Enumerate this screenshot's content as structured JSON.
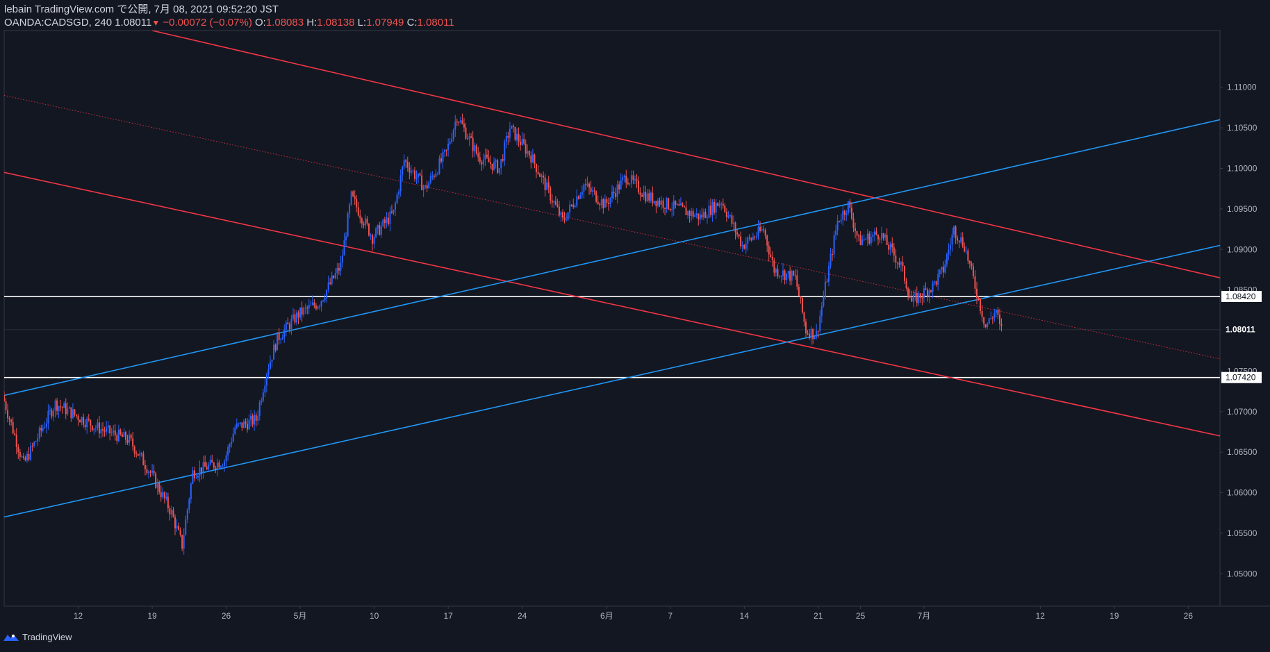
{
  "header": {
    "published": "lebain TradingView.com で公開, 7月 08, 2021 09:52:20 JST",
    "symbol": "OANDA:CADSGD, 240",
    "last": "1.08011",
    "arrow": "▼",
    "change": "−0.00072 (−0.07%)",
    "o_label": "O:",
    "o_value": "1.08083",
    "h_label": "H:",
    "h_value": "1.08138",
    "l_label": "L:",
    "l_value": "1.07949",
    "c_label": "C:",
    "c_value": "1.08011"
  },
  "footer": {
    "brand": "TradingView"
  },
  "colors": {
    "background": "#131722",
    "up": "#2962ff",
    "down": "#ef5350",
    "channel_red": "#f23645",
    "channel_blue": "#2196f3",
    "level": "#ffffff"
  },
  "chart_data": {
    "type": "candlestick",
    "symbol": "OANDA:CADSGD",
    "interval": "240",
    "y_range": [
      1.046,
      1.117
    ],
    "y_ticks": [
      "1.11000",
      "1.10500",
      "1.10000",
      "1.09500",
      "1.09000",
      "1.08500",
      "1.08000",
      "1.07500",
      "1.07000",
      "1.06500",
      "1.06000",
      "1.05500",
      "1.05000"
    ],
    "y_tick_values": [
      1.11,
      1.105,
      1.1,
      1.095,
      1.09,
      1.085,
      1.08,
      1.075,
      1.07,
      1.065,
      1.06,
      1.055,
      1.05
    ],
    "x_range": [
      "2021-04-05",
      "2021-07-29"
    ],
    "x_ticks": [
      {
        "label": "12",
        "date": "2021-04-12"
      },
      {
        "label": "19",
        "date": "2021-04-19"
      },
      {
        "label": "26",
        "date": "2021-04-26"
      },
      {
        "label": "5月",
        "date": "2021-05-03"
      },
      {
        "label": "10",
        "date": "2021-05-10"
      },
      {
        "label": "17",
        "date": "2021-05-17"
      },
      {
        "label": "24",
        "date": "2021-05-24"
      },
      {
        "label": "6月",
        "date": "2021-06-01"
      },
      {
        "label": "7",
        "date": "2021-06-07"
      },
      {
        "label": "14",
        "date": "2021-06-14"
      },
      {
        "label": "21",
        "date": "2021-06-21"
      },
      {
        "label": "25",
        "date": "2021-06-25"
      },
      {
        "label": "7月",
        "date": "2021-07-01"
      },
      {
        "label": "12",
        "date": "2021-07-12"
      },
      {
        "label": "19",
        "date": "2021-07-19"
      },
      {
        "label": "26",
        "date": "2021-07-26"
      }
    ],
    "price_path": [
      [
        "2021-04-05",
        1.072
      ],
      [
        "2021-04-07",
        1.0635
      ],
      [
        "2021-04-10",
        1.071
      ],
      [
        "2021-04-14",
        1.068
      ],
      [
        "2021-04-17",
        1.0665
      ],
      [
        "2021-04-19",
        1.0625
      ],
      [
        "2021-04-21",
        1.0575
      ],
      [
        "2021-04-22",
        1.0535
      ],
      [
        "2021-04-23",
        1.0625
      ],
      [
        "2021-04-26",
        1.064
      ],
      [
        "2021-04-27",
        1.068
      ],
      [
        "2021-04-29",
        1.069
      ],
      [
        "2021-04-30",
        1.075
      ],
      [
        "2021-05-01",
        1.079
      ],
      [
        "2021-05-03",
        1.082
      ],
      [
        "2021-05-05",
        1.0835
      ],
      [
        "2021-05-07",
        1.088
      ],
      [
        "2021-05-08",
        1.0965
      ],
      [
        "2021-05-10",
        1.0915
      ],
      [
        "2021-05-12",
        1.0945
      ],
      [
        "2021-05-13",
        1.101
      ],
      [
        "2021-05-15",
        1.0975
      ],
      [
        "2021-05-17",
        1.102
      ],
      [
        "2021-05-18",
        1.1065
      ],
      [
        "2021-05-20",
        1.1015
      ],
      [
        "2021-05-22",
        1.1
      ],
      [
        "2021-05-23",
        1.105
      ],
      [
        "2021-05-25",
        1.1015
      ],
      [
        "2021-05-28",
        1.0935
      ],
      [
        "2021-05-30",
        1.098
      ],
      [
        "2021-06-01",
        1.0955
      ],
      [
        "2021-06-03",
        1.099
      ],
      [
        "2021-06-05",
        1.0965
      ],
      [
        "2021-06-07",
        1.0955
      ],
      [
        "2021-06-10",
        1.094
      ],
      [
        "2021-06-12",
        1.096
      ],
      [
        "2021-06-14",
        1.0905
      ],
      [
        "2021-06-16",
        1.0925
      ],
      [
        "2021-06-17",
        1.0875
      ],
      [
        "2021-06-19",
        1.0865
      ],
      [
        "2021-06-20",
        1.08
      ],
      [
        "2021-06-21",
        1.0795
      ],
      [
        "2021-06-22",
        1.0865
      ],
      [
        "2021-06-23",
        1.0935
      ],
      [
        "2021-06-24",
        1.0955
      ],
      [
        "2021-06-25",
        1.091
      ],
      [
        "2021-06-27",
        1.092
      ],
      [
        "2021-06-29",
        1.088
      ],
      [
        "2021-06-30",
        1.0835
      ],
      [
        "2021-07-02",
        1.0855
      ],
      [
        "2021-07-03",
        1.0875
      ],
      [
        "2021-07-04",
        1.0925
      ],
      [
        "2021-07-05",
        1.0905
      ],
      [
        "2021-07-06",
        1.0855
      ],
      [
        "2021-07-07",
        1.0805
      ],
      [
        "2021-07-08",
        1.0825
      ],
      [
        "2021-07-08T09:00",
        1.08011
      ]
    ],
    "trend_lines": [
      {
        "role": "resistance",
        "color": "#f23645",
        "width": 1.6,
        "style": "solid",
        "from": [
          "2021-04-19",
          1.117
        ],
        "to": [
          "2021-07-29",
          1.0865
        ]
      },
      {
        "role": "mid",
        "color": "#f23645",
        "width": 1,
        "style": "dotted",
        "from": [
          "2021-04-05",
          1.109
        ],
        "to": [
          "2021-07-29",
          1.0765
        ]
      },
      {
        "role": "support",
        "color": "#f23645",
        "width": 1.6,
        "style": "solid",
        "from": [
          "2021-04-05",
          1.0995
        ],
        "to": [
          "2021-07-29",
          1.067
        ]
      },
      {
        "role": "rising-upper",
        "color": "#2196f3",
        "width": 1.6,
        "style": "solid",
        "from": [
          "2021-04-05",
          1.072
        ],
        "to": [
          "2021-07-29",
          1.106
        ]
      },
      {
        "role": "rising-lower",
        "color": "#2196f3",
        "width": 1.6,
        "style": "solid",
        "from": [
          "2021-04-05",
          1.057
        ],
        "to": [
          "2021-07-29",
          1.0905
        ]
      }
    ],
    "horizontal_levels": [
      {
        "value": 1.0842,
        "label": "1.08420"
      },
      {
        "value": 1.0742,
        "label": "1.07420"
      }
    ],
    "last_price": {
      "value": 1.08011,
      "label": "1.08011"
    }
  }
}
